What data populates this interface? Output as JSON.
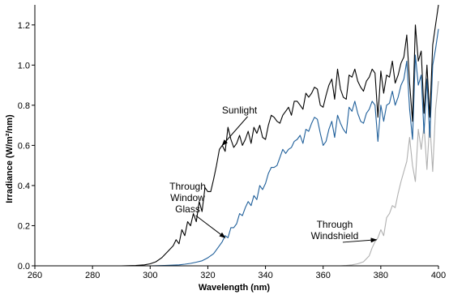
{
  "chart_data": {
    "type": "line",
    "xlabel": "Wavelength (nm)",
    "ylabel": "Irradiance (W/m²/nm)",
    "xlim": [
      260,
      400
    ],
    "ylim": [
      0,
      1.3
    ],
    "x_ticks": [
      "260",
      "280",
      "300",
      "320",
      "340",
      "360",
      "380",
      "400"
    ],
    "y_ticks": [
      "0.0",
      "0.2",
      "0.4",
      "0.6",
      "0.8",
      "1.0",
      "1.2"
    ],
    "grid": false,
    "series_colors": [
      "#000000",
      "#1f5f9a",
      "#b0b0b0"
    ],
    "series": [
      {
        "name": "Sunlight",
        "x": [
          260,
          290,
          295,
          298,
          300,
          302,
          304,
          306,
          308,
          309,
          310,
          311,
          312,
          313,
          314,
          315,
          316,
          317,
          318,
          319,
          320,
          321,
          322,
          323,
          324,
          325,
          326,
          327,
          328,
          329,
          330,
          331,
          332,
          333,
          334,
          335,
          336,
          337,
          338,
          339,
          340,
          341,
          342,
          343,
          344,
          345,
          346,
          347,
          348,
          349,
          350,
          351,
          352,
          353,
          354,
          355,
          356,
          357,
          358,
          359,
          360,
          361,
          362,
          363,
          364,
          365,
          366,
          367,
          368,
          369,
          370,
          371,
          372,
          373,
          374,
          375,
          376,
          377,
          378,
          379,
          380,
          381,
          382,
          383,
          384,
          385,
          386,
          387,
          388,
          389,
          390,
          391,
          392,
          393,
          394,
          395,
          396,
          397,
          398,
          399,
          400
        ],
        "y": [
          0,
          0,
          0.002,
          0.005,
          0.01,
          0.02,
          0.04,
          0.07,
          0.1,
          0.13,
          0.11,
          0.18,
          0.15,
          0.22,
          0.2,
          0.26,
          0.22,
          0.32,
          0.27,
          0.39,
          0.37,
          0.37,
          0.43,
          0.5,
          0.58,
          0.6,
          0.57,
          0.69,
          0.63,
          0.59,
          0.61,
          0.65,
          0.6,
          0.63,
          0.67,
          0.61,
          0.69,
          0.66,
          0.7,
          0.64,
          0.63,
          0.7,
          0.75,
          0.74,
          0.72,
          0.71,
          0.75,
          0.77,
          0.79,
          0.75,
          0.82,
          0.82,
          0.8,
          0.78,
          0.86,
          0.84,
          0.86,
          0.89,
          0.88,
          0.8,
          0.79,
          0.85,
          0.9,
          0.93,
          0.83,
          0.98,
          0.88,
          0.84,
          0.83,
          0.95,
          0.94,
          0.98,
          0.92,
          0.89,
          0.87,
          0.92,
          0.94,
          0.98,
          0.96,
          0.74,
          0.97,
          0.86,
          0.95,
          0.94,
          1.02,
          0.91,
          0.95,
          1.01,
          1.04,
          1.15,
          0.91,
          0.72,
          1.2,
          1.02,
          1.07,
          0.76,
          1.0,
          0.74,
          1.1,
          1.2,
          1.3
        ]
      },
      {
        "name": "Through Window Glass",
        "x": [
          260,
          300,
          305,
          310,
          312,
          314,
          316,
          318,
          320,
          322,
          323,
          324,
          325,
          326,
          327,
          328,
          329,
          330,
          331,
          332,
          333,
          334,
          335,
          336,
          337,
          338,
          339,
          340,
          341,
          342,
          343,
          344,
          345,
          346,
          347,
          348,
          349,
          350,
          351,
          352,
          353,
          354,
          355,
          356,
          357,
          358,
          359,
          360,
          361,
          362,
          363,
          364,
          365,
          366,
          367,
          368,
          369,
          370,
          371,
          372,
          373,
          374,
          375,
          376,
          377,
          378,
          379,
          380,
          381,
          382,
          383,
          384,
          385,
          386,
          387,
          388,
          389,
          390,
          391,
          392,
          393,
          394,
          395,
          396,
          397,
          398,
          399,
          400
        ],
        "y": [
          0,
          0,
          0.002,
          0.005,
          0.008,
          0.012,
          0.018,
          0.025,
          0.04,
          0.06,
          0.08,
          0.1,
          0.12,
          0.15,
          0.14,
          0.19,
          0.19,
          0.21,
          0.26,
          0.25,
          0.29,
          0.32,
          0.3,
          0.35,
          0.33,
          0.4,
          0.38,
          0.41,
          0.46,
          0.49,
          0.49,
          0.5,
          0.54,
          0.58,
          0.56,
          0.58,
          0.59,
          0.62,
          0.63,
          0.65,
          0.61,
          0.68,
          0.67,
          0.71,
          0.74,
          0.73,
          0.66,
          0.6,
          0.62,
          0.68,
          0.72,
          0.64,
          0.75,
          0.71,
          0.68,
          0.66,
          0.79,
          0.77,
          0.82,
          0.76,
          0.72,
          0.71,
          0.76,
          0.78,
          0.82,
          0.8,
          0.62,
          0.8,
          0.72,
          0.8,
          0.81,
          0.87,
          0.8,
          0.84,
          0.9,
          0.93,
          1.02,
          0.78,
          0.63,
          1.05,
          0.9,
          0.95,
          0.66,
          0.93,
          0.64,
          1.0,
          1.08,
          1.18
        ]
      },
      {
        "name": "Through Windshield",
        "x": [
          260,
          366,
          368,
          370,
          372,
          374,
          376,
          377,
          378,
          379,
          380,
          381,
          382,
          383,
          384,
          385,
          386,
          387,
          388,
          389,
          390,
          391,
          392,
          393,
          394,
          395,
          396,
          397,
          398,
          399,
          400
        ],
        "y": [
          0,
          0,
          0.002,
          0.005,
          0.01,
          0.02,
          0.05,
          0.09,
          0.12,
          0.14,
          0.18,
          0.15,
          0.24,
          0.26,
          0.3,
          0.29,
          0.36,
          0.42,
          0.47,
          0.52,
          0.64,
          0.5,
          0.42,
          0.68,
          0.58,
          0.7,
          0.48,
          0.72,
          0.47,
          0.78,
          0.92
        ]
      }
    ],
    "annotations": [
      {
        "lines": [
          "Sunlight"
        ],
        "x": 331,
        "y": 0.76,
        "arrow_to": [
          325,
          0.6
        ]
      },
      {
        "lines": [
          "Through",
          "Window",
          "Glass"
        ],
        "x": 313,
        "y": 0.38,
        "arrow_to": [
          326,
          0.14
        ]
      },
      {
        "lines": [
          "Through",
          "Windshield"
        ],
        "x": 364,
        "y": 0.19,
        "arrow_to": [
          378.5,
          0.13
        ]
      }
    ]
  }
}
